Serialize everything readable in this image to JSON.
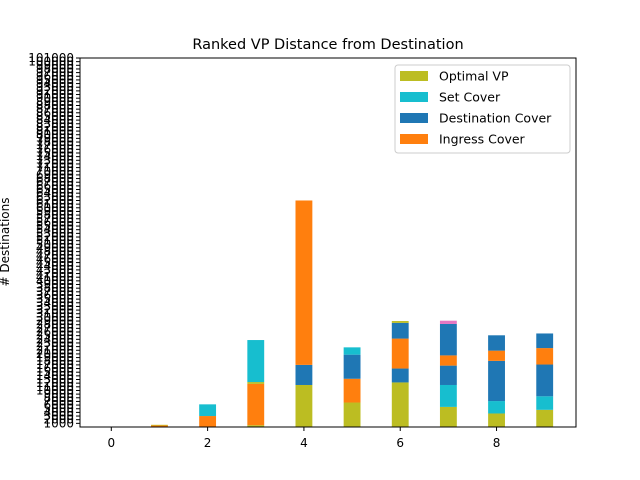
{
  "chart_data": {
    "type": "bar",
    "stacked": true,
    "title": "Ranked VP Distance from Destination",
    "xlabel": "",
    "ylabel": "# Destinations",
    "xlim": [
      -0.65,
      9.65
    ],
    "ylim": [
      0,
      101000
    ],
    "x_ticks": [
      0,
      2,
      4,
      6,
      8
    ],
    "y_ticks": [
      1000,
      2000,
      3000,
      4000,
      5000,
      6000,
      7000,
      8000,
      9000,
      10000,
      11000,
      12000,
      13000,
      14000,
      15000,
      16000,
      17000,
      18000,
      19000,
      20000,
      21000,
      22000,
      23000,
      24000,
      25000,
      26000,
      27000,
      28000,
      29000,
      30000,
      31000,
      32000,
      33000,
      34000,
      35000,
      36000,
      37000,
      38000,
      39000,
      40000,
      41000,
      42000,
      43000,
      44000,
      45000,
      46000,
      47000,
      48000,
      49000,
      50000,
      51000,
      52000,
      53000,
      54000,
      55000,
      56000,
      57000,
      58000,
      59000,
      60000,
      61000,
      62000,
      63000,
      64000,
      65000,
      66000,
      67000,
      68000,
      69000,
      70000,
      71000,
      72000,
      73000,
      74000,
      75000,
      76000,
      77000,
      78000,
      79000,
      80000,
      81000,
      82000,
      83000,
      84000,
      85000,
      86000,
      87000,
      88000,
      89000,
      90000,
      91000,
      92000,
      93000,
      94000,
      95000,
      96000,
      97000,
      98000,
      99000,
      100000,
      101000
    ],
    "legend_position": "top-right",
    "legend_order": [
      "Optimal VP",
      "Set Cover",
      "Destination Cover",
      "Ingress Cover"
    ],
    "categories": [
      0,
      1,
      2,
      3,
      4,
      5,
      6,
      7,
      8,
      9
    ],
    "segments": [
      [],
      [
        {
          "series": "Ingress Cover",
          "value": 400
        },
        {
          "series": "Optimal VP",
          "value": 200
        }
      ],
      [
        {
          "series": "Ingress Cover",
          "value": 3000
        },
        {
          "series": "Set Cover",
          "value": 3200
        }
      ],
      [
        {
          "series": "Optimal VP",
          "value": 500
        },
        {
          "series": "Ingress Cover",
          "value": 11300
        },
        {
          "series": "Optimal VP",
          "value": 500
        },
        {
          "series": "Set Cover",
          "value": 11500
        }
      ],
      [
        {
          "series": "Optimal VP",
          "value": 11500
        },
        {
          "series": "Destination Cover",
          "value": 5500
        },
        {
          "series": "Ingress Cover",
          "value": 45000
        }
      ],
      [
        {
          "series": "Optimal VP",
          "value": 6700
        },
        {
          "series": "Ingress Cover",
          "value": 6500
        },
        {
          "series": "Destination Cover",
          "value": 6600
        },
        {
          "series": "Set Cover",
          "value": 2000
        }
      ],
      [
        {
          "series": "Optimal VP",
          "value": 12200
        },
        {
          "series": "Destination Cover",
          "value": 3800
        },
        {
          "series": "Ingress Cover",
          "value": 8200
        },
        {
          "series": "Destination Cover",
          "value": 4300
        },
        {
          "series": "Optimal VP",
          "value": 500
        }
      ],
      [
        {
          "series": "Optimal VP",
          "value": 5500
        },
        {
          "series": "Set Cover",
          "value": 6000
        },
        {
          "series": "Destination Cover",
          "value": 5300
        },
        {
          "series": "Ingress Cover",
          "value": 2800
        },
        {
          "series": "Destination Cover",
          "value": 8600
        },
        {
          "series": "Other",
          "value": 900
        }
      ],
      [
        {
          "series": "Optimal VP",
          "value": 3700
        },
        {
          "series": "Set Cover",
          "value": 3400
        },
        {
          "series": "Destination Cover",
          "value": 11000
        },
        {
          "series": "Ingress Cover",
          "value": 2800
        },
        {
          "series": "Destination Cover",
          "value": 4200
        }
      ],
      [
        {
          "series": "Optimal VP",
          "value": 4700
        },
        {
          "series": "Set Cover",
          "value": 3700
        },
        {
          "series": "Destination Cover",
          "value": 8700
        },
        {
          "series": "Ingress Cover",
          "value": 4500
        },
        {
          "series": "Destination Cover",
          "value": 4000
        }
      ]
    ],
    "colors": {
      "Optimal VP": "#bcbd22",
      "Set Cover": "#17becf",
      "Destination Cover": "#1f77b4",
      "Ingress Cover": "#ff7f0e",
      "Other": "#e377c2"
    }
  }
}
